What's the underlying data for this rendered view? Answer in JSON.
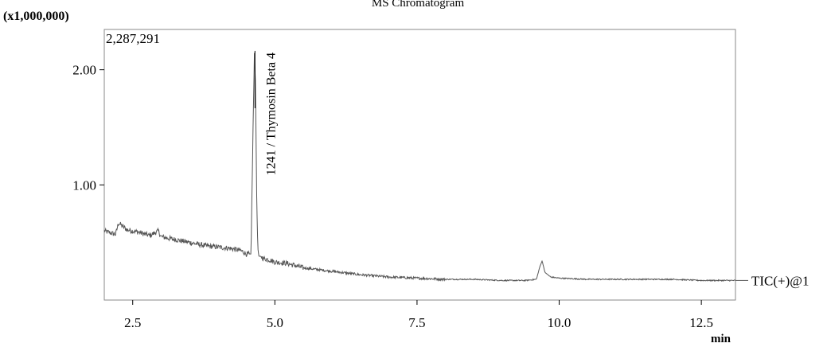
{
  "chart_data": {
    "type": "line",
    "title": "MS Chromatogram",
    "y_multiplier_label": "(x1,000,000)",
    "max_intensity_label": "2,287,291",
    "xlabel": "min",
    "ylabel": "",
    "xlim": [
      2.0,
      13.1
    ],
    "ylim": [
      0.0,
      2.35
    ],
    "x_ticks": [
      2.5,
      5.0,
      7.5,
      10.0,
      12.5
    ],
    "x_tick_labels": [
      "2.5",
      "5.0",
      "7.5",
      "10.0",
      "12.5"
    ],
    "y_ticks": [
      1.0,
      2.0
    ],
    "y_tick_labels": [
      "1.00",
      "2.00"
    ],
    "grid": false,
    "series": [
      {
        "name": "TIC(+)@1",
        "color": "#555555",
        "x": [
          2.0,
          2.2,
          2.25,
          2.4,
          2.6,
          2.8,
          2.95,
          3.0,
          3.2,
          3.5,
          3.8,
          4.0,
          4.2,
          4.4,
          4.5,
          4.58,
          4.62,
          4.64,
          4.66,
          4.68,
          4.7,
          4.72,
          4.75,
          4.8,
          4.9,
          5.0,
          5.2,
          5.5,
          6.0,
          6.5,
          7.0,
          7.5,
          8.0,
          8.5,
          9.0,
          9.4,
          9.6,
          9.66,
          9.7,
          9.75,
          9.85,
          10.0,
          10.5,
          11.0,
          11.5,
          12.0,
          12.5,
          13.1
        ],
        "y": [
          0.6,
          0.57,
          0.67,
          0.61,
          0.59,
          0.56,
          0.6,
          0.55,
          0.53,
          0.5,
          0.47,
          0.46,
          0.45,
          0.43,
          0.4,
          0.4,
          1.6,
          2.15,
          1.85,
          0.9,
          0.45,
          0.38,
          0.38,
          0.36,
          0.35,
          0.33,
          0.32,
          0.28,
          0.25,
          0.22,
          0.2,
          0.19,
          0.18,
          0.18,
          0.17,
          0.17,
          0.18,
          0.29,
          0.34,
          0.24,
          0.2,
          0.19,
          0.18,
          0.18,
          0.18,
          0.18,
          0.17,
          0.17
        ]
      }
    ],
    "annotations": [
      {
        "x": 4.65,
        "y": 2.15,
        "text": "1241 / Thymosin Beta 4"
      }
    ]
  }
}
